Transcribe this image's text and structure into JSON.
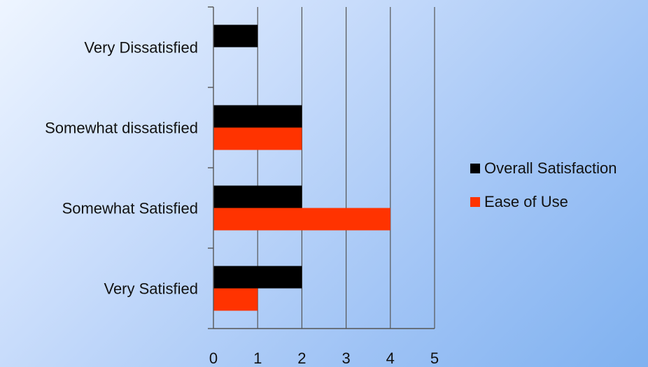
{
  "chart_data": {
    "type": "bar",
    "orientation": "horizontal",
    "categories": [
      "Very Dissatisfied",
      "Somewhat dissatisfied",
      "Somewhat Satisfied",
      "Very Satisfied"
    ],
    "series": [
      {
        "name": "Overall Satisfaction",
        "color": "#000000",
        "values": [
          1,
          2,
          2,
          2
        ]
      },
      {
        "name": "Ease of Use",
        "color": "#ff3300",
        "values": [
          0,
          2,
          4,
          1
        ]
      }
    ],
    "xlim": [
      0,
      5
    ],
    "xticks": [
      0,
      1,
      2,
      3,
      4,
      5
    ],
    "grid": "vertical",
    "legend": "right"
  }
}
